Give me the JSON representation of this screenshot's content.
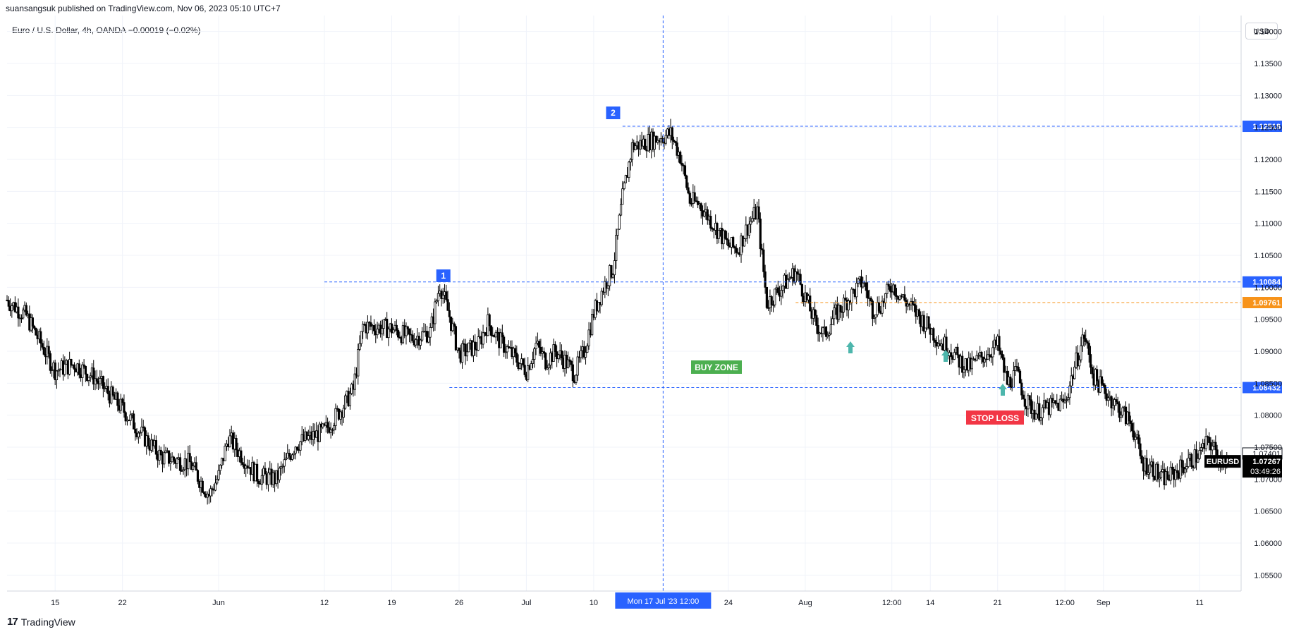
{
  "header": {
    "attribution": "suansangsuk published on TradingView.com, Nov 06, 2023 05:10 UTC+7",
    "symbol_line": "Euro / U.S. Dollar, 4h, OANDA  −0.00019 (−0.02%)",
    "currency_button": "USD"
  },
  "footer": {
    "logo_mark": "17",
    "logo_text": "TradingView"
  },
  "chart_data": {
    "type": "candlestick",
    "symbol": "EURUSD",
    "timeframe": "4h",
    "ylim": [
      1.0525,
      1.1425
    ],
    "y_ticks": [
      "1.14000",
      "1.13500",
      "1.13000",
      "1.12500",
      "1.12000",
      "1.11500",
      "1.11000",
      "1.10500",
      "1.10000",
      "1.09500",
      "1.09000",
      "1.08500",
      "1.08000",
      "1.07500",
      "1.07000",
      "1.06500",
      "1.06000",
      "1.05500"
    ],
    "x_ticks": [
      "15",
      "22",
      "Jun",
      "12",
      "19",
      "26",
      "Jul",
      "10",
      "24",
      "Aug",
      "12:00",
      "14",
      "21",
      "12:00",
      "Sep",
      "11"
    ],
    "crosshair_label": "Mon 17 Jul '23   12:00",
    "series_anchors": [
      {
        "t": "May 10",
        "price": 1.098
      },
      {
        "t": "May 12",
        "price": 1.0955
      },
      {
        "t": "May 15",
        "price": 1.087
      },
      {
        "t": "May 17",
        "price": 1.088
      },
      {
        "t": "May 19",
        "price": 1.086
      },
      {
        "t": "May 22",
        "price": 1.081
      },
      {
        "t": "May 24",
        "price": 1.077
      },
      {
        "t": "May 26",
        "price": 1.0735
      },
      {
        "t": "May 29",
        "price": 1.0725
      },
      {
        "t": "May 31",
        "price": 1.0675
      },
      {
        "t": "Jun 01",
        "price": 1.0705
      },
      {
        "t": "Jun 02",
        "price": 1.0765
      },
      {
        "t": "Jun 05",
        "price": 1.0705
      },
      {
        "t": "Jun 07",
        "price": 1.07
      },
      {
        "t": "Jun 09",
        "price": 1.0755
      },
      {
        "t": "Jun 12",
        "price": 1.0775
      },
      {
        "t": "Jun 14",
        "price": 1.0815
      },
      {
        "t": "Jun 15",
        "price": 1.084
      },
      {
        "t": "Jun 16",
        "price": 1.094
      },
      {
        "t": "Jun 19",
        "price": 1.0935
      },
      {
        "t": "Jun 21",
        "price": 1.092
      },
      {
        "t": "Jun 23",
        "price": 1.093
      },
      {
        "t": "Jun 24",
        "price": 1.1005
      },
      {
        "t": "Jun 25",
        "price": 1.0955
      },
      {
        "t": "Jun 26",
        "price": 1.0895
      },
      {
        "t": "Jun 28",
        "price": 1.091
      },
      {
        "t": "Jun 29",
        "price": 1.0945
      },
      {
        "t": "Jun 30",
        "price": 1.092
      },
      {
        "t": "Jul 03",
        "price": 1.087
      },
      {
        "t": "Jul 04",
        "price": 1.091
      },
      {
        "t": "Jul 05",
        "price": 1.0885
      },
      {
        "t": "Jul 06",
        "price": 1.09
      },
      {
        "t": "Jul 07",
        "price": 1.0885
      },
      {
        "t": "Jul 08",
        "price": 1.0865
      },
      {
        "t": "Jul 09",
        "price": 1.09
      },
      {
        "t": "Jul 10",
        "price": 1.096
      },
      {
        "t": "Jul 11",
        "price": 1.1
      },
      {
        "t": "Jul 12",
        "price": 1.103
      },
      {
        "t": "Jul 13",
        "price": 1.114
      },
      {
        "t": "Jul 14",
        "price": 1.122
      },
      {
        "t": "Jul 17",
        "price": 1.1235
      },
      {
        "t": "Jul 18",
        "price": 1.124
      },
      {
        "t": "Jul 19",
        "price": 1.1205
      },
      {
        "t": "Jul 20",
        "price": 1.1135
      },
      {
        "t": "Jul 21",
        "price": 1.113
      },
      {
        "t": "Jul 24",
        "price": 1.1065
      },
      {
        "t": "Jul 25",
        "price": 1.106
      },
      {
        "t": "Jul 26",
        "price": 1.1095
      },
      {
        "t": "Jul 27",
        "price": 1.112
      },
      {
        "t": "Jul 28",
        "price": 1.0975
      },
      {
        "t": "Jul 31",
        "price": 1.1025
      },
      {
        "t": "Aug 01",
        "price": 1.0985
      },
      {
        "t": "Aug 02",
        "price": 1.0945
      },
      {
        "t": "Aug 03",
        "price": 1.0925
      },
      {
        "t": "Aug 04",
        "price": 1.0955
      },
      {
        "t": "Aug 07",
        "price": 1.101
      },
      {
        "t": "Aug 08",
        "price": 1.0965
      },
      {
        "t": "Aug 09",
        "price": 1.0975
      },
      {
        "t": "Aug 10",
        "price": 1.1005
      },
      {
        "t": "Aug 11",
        "price": 1.0985
      },
      {
        "t": "Aug 14",
        "price": 1.0935
      },
      {
        "t": "Aug 15",
        "price": 1.0915
      },
      {
        "t": "Aug 16",
        "price": 1.0905
      },
      {
        "t": "Aug 17",
        "price": 1.0885
      },
      {
        "t": "Aug 18",
        "price": 1.0875
      },
      {
        "t": "Aug 21",
        "price": 1.091
      },
      {
        "t": "Aug 22",
        "price": 1.085
      },
      {
        "t": "Aug 23",
        "price": 1.0865
      },
      {
        "t": "Aug 24",
        "price": 1.082
      },
      {
        "t": "Aug 25",
        "price": 1.0805
      },
      {
        "t": "Aug 28",
        "price": 1.082
      },
      {
        "t": "Aug 29",
        "price": 1.0875
      },
      {
        "t": "Aug 30",
        "price": 1.0925
      },
      {
        "t": "Aug 31",
        "price": 1.086
      },
      {
        "t": "Sep 01",
        "price": 1.084
      },
      {
        "t": "Sep 04",
        "price": 1.0785
      },
      {
        "t": "Sep 05",
        "price": 1.0725
      },
      {
        "t": "Sep 06",
        "price": 1.072
      },
      {
        "t": "Sep 07",
        "price": 1.07
      },
      {
        "t": "Sep 08",
        "price": 1.0705
      },
      {
        "t": "Sep 11",
        "price": 1.074
      },
      {
        "t": "Sep 12",
        "price": 1.076
      },
      {
        "t": "Sep 13",
        "price": 1.0733
      },
      {
        "t": "Sep 14",
        "price": 1.0727
      }
    ],
    "price_lines": [
      {
        "id": "level-1",
        "label": "1",
        "price": 1.10084,
        "color": "#2962ff",
        "tag": "1.10084"
      },
      {
        "id": "level-2",
        "label": "2",
        "price": 1.12518,
        "color": "#2962ff",
        "tag": "1.12518"
      },
      {
        "id": "support",
        "price": 1.08432,
        "color": "#2962ff",
        "tag": "1.08432"
      },
      {
        "id": "entry",
        "price": 1.09761,
        "color": "#f7931a",
        "tag": "1.09761"
      }
    ],
    "annotations": {
      "buy_zone": {
        "text": "BUY ZONE",
        "color": "#4caf50"
      },
      "stop_loss": {
        "text": "STOP LOSS",
        "color": "#f23645"
      },
      "arrow_color": "#4db6ac"
    },
    "price_tags": {
      "prev": "1.07401",
      "last_label": "EURUSD",
      "last": "1.07267",
      "countdown": "03:49:26"
    }
  }
}
